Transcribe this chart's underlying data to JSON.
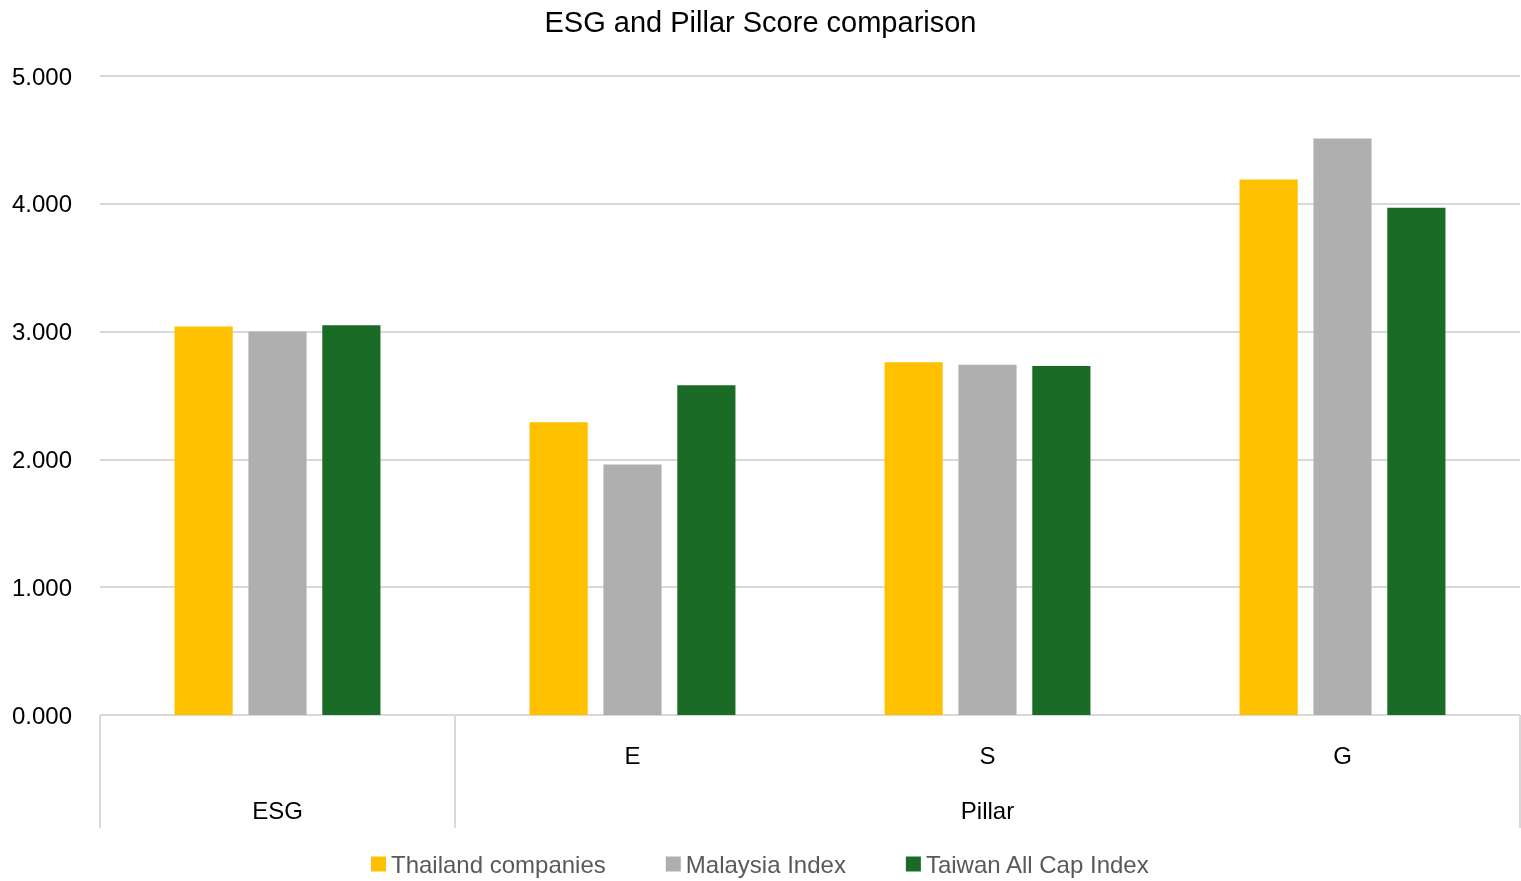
{
  "chart_data": {
    "type": "bar",
    "title": "ESG and Pillar Score comparison",
    "categories": [
      null,
      "E",
      "S",
      "G"
    ],
    "annotations": [
      "ESG",
      "Pillar"
    ],
    "series": [
      {
        "name": "Thailand companies",
        "color": "#ffc000",
        "values": [
          3.04,
          2.29,
          2.76,
          4.19
        ]
      },
      {
        "name": "Malaysia Index",
        "color": "#afafaf",
        "values": [
          3.0,
          1.96,
          2.74,
          4.51
        ]
      },
      {
        "name": "Taiwan All Cap Index",
        "color": "#1a6b25",
        "values": [
          3.05,
          2.58,
          2.73,
          3.97
        ]
      }
    ],
    "ylim": [
      0,
      5
    ],
    "yticks": [
      {
        "value": 0,
        "label": "0.000"
      },
      {
        "value": 1,
        "label": "1.000"
      },
      {
        "value": 2,
        "label": "2.000"
      },
      {
        "value": 3,
        "label": "3.000"
      },
      {
        "value": 4,
        "label": "4.000"
      },
      {
        "value": 5,
        "label": "5.000"
      }
    ],
    "grid": "y",
    "legend": "bottom"
  }
}
